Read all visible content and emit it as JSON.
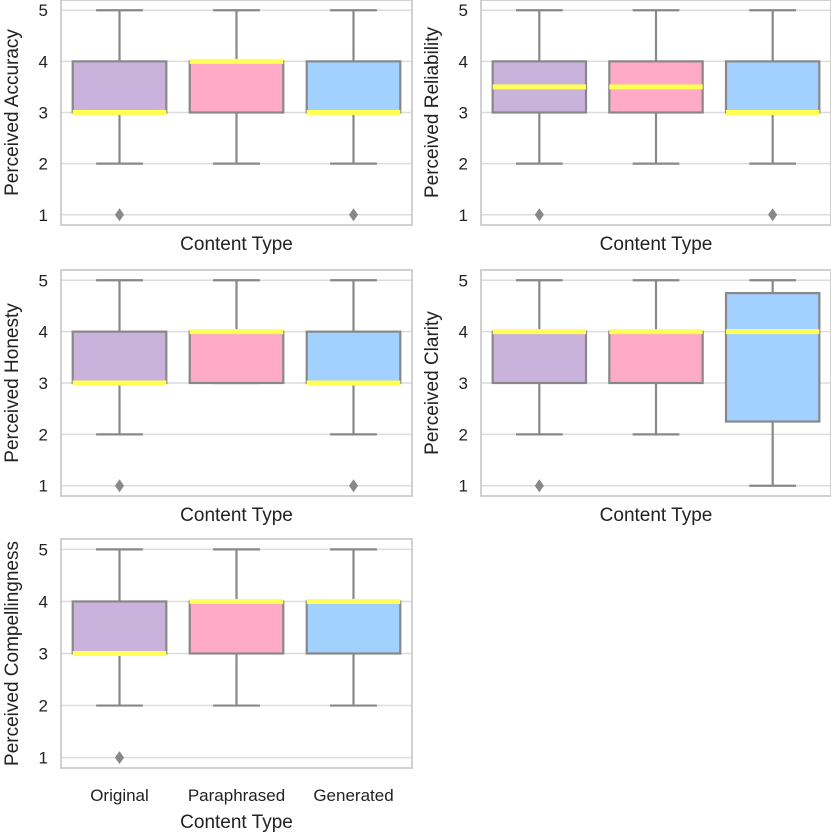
{
  "chart_data": {
    "type": "box",
    "categories": [
      "Original",
      "Paraphrased",
      "Generated"
    ],
    "colors": [
      "#c9b3dc",
      "#ffabc8",
      "#a3d1ff"
    ],
    "median_color": "#ffff55",
    "whisker_color": "#888888",
    "grid": true,
    "ylim": [
      0.8,
      5.2
    ],
    "yticks": [
      1,
      2,
      3,
      4,
      5
    ],
    "xlabel": "Content Type",
    "panels": [
      {
        "ylabel": "Perceived Accuracy",
        "boxes": [
          {
            "min": 2,
            "q1": 3,
            "median": 3,
            "q3": 4,
            "max": 5,
            "outliers": [
              1
            ]
          },
          {
            "min": 2,
            "q1": 3,
            "median": 4,
            "q3": 4,
            "max": 5,
            "outliers": []
          },
          {
            "min": 2,
            "q1": 3,
            "median": 3,
            "q3": 4,
            "max": 5,
            "outliers": [
              1
            ]
          }
        ]
      },
      {
        "ylabel": "Perceived Reliability",
        "boxes": [
          {
            "min": 2,
            "q1": 3,
            "median": 3.5,
            "q3": 4,
            "max": 5,
            "outliers": [
              1
            ]
          },
          {
            "min": 2,
            "q1": 3,
            "median": 3.5,
            "q3": 4,
            "max": 5,
            "outliers": []
          },
          {
            "min": 2,
            "q1": 3,
            "median": 3,
            "q3": 4,
            "max": 5,
            "outliers": [
              1
            ]
          }
        ]
      },
      {
        "ylabel": "Perceived Honesty",
        "boxes": [
          {
            "min": 2,
            "q1": 3,
            "median": 3,
            "q3": 4,
            "max": 5,
            "outliers": [
              1
            ]
          },
          {
            "min": 3,
            "q1": 3,
            "median": 4,
            "q3": 4,
            "max": 5,
            "outliers": []
          },
          {
            "min": 2,
            "q1": 3,
            "median": 3,
            "q3": 4,
            "max": 5,
            "outliers": [
              1
            ]
          }
        ]
      },
      {
        "ylabel": "Perceived Clarity",
        "boxes": [
          {
            "min": 2,
            "q1": 3,
            "median": 4,
            "q3": 4,
            "max": 5,
            "outliers": [
              1
            ]
          },
          {
            "min": 2,
            "q1": 3,
            "median": 4,
            "q3": 4,
            "max": 5,
            "outliers": []
          },
          {
            "min": 1,
            "q1": 2.25,
            "median": 4,
            "q3": 4.75,
            "max": 5,
            "outliers": []
          }
        ]
      },
      {
        "ylabel": "Perceived Compellingness",
        "boxes": [
          {
            "min": 2,
            "q1": 3,
            "median": 3,
            "q3": 4,
            "max": 5,
            "outliers": [
              1
            ]
          },
          {
            "min": 2,
            "q1": 3,
            "median": 4,
            "q3": 4,
            "max": 5,
            "outliers": []
          },
          {
            "min": 2,
            "q1": 3,
            "median": 4,
            "q3": 4,
            "max": 5,
            "outliers": []
          }
        ]
      }
    ]
  }
}
